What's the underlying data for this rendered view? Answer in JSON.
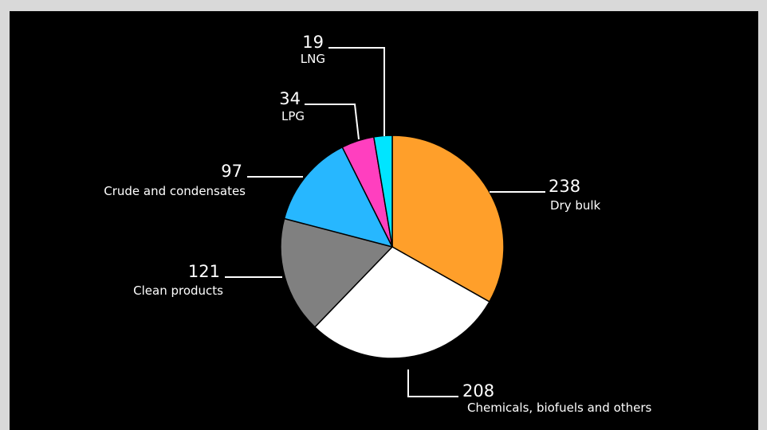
{
  "chart_data": {
    "type": "pie",
    "title": "",
    "legend": "none",
    "slices": [
      {
        "label": "Dry bulk",
        "value": 238,
        "color": "#ff9f2a"
      },
      {
        "label": "Chemicals, biofuels and others",
        "value": 208,
        "color": "#ffffff"
      },
      {
        "label": "Clean products",
        "value": 121,
        "color": "#808080"
      },
      {
        "label": "Crude and condensates",
        "value": 97,
        "color": "#27b7ff"
      },
      {
        "label": "LPG",
        "value": 34,
        "color": "#ff3fbf"
      },
      {
        "label": "LNG",
        "value": 19,
        "color": "#00e5ff"
      }
    ]
  }
}
